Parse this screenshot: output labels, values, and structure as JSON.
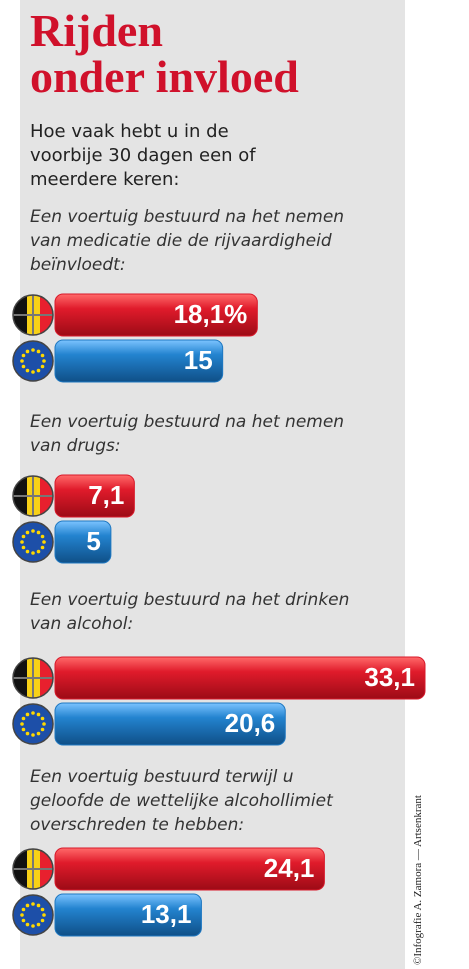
{
  "chart_data": {
    "type": "bar",
    "title_lines": [
      "Rijden",
      "onder invloed"
    ],
    "subtitle": "Hoe vaak hebt u in de voorbije 30 dagen een of meerdere keren:",
    "categories": [
      "Een voertuig bestuurd na het nemen van medicatie die de rijvaardigheid beïnvloedt:",
      "Een voertuig bestuurd na het nemen van drugs:",
      "Een voertuig bestuurd na het drinken van alcohol:",
      "Een voertuig bestuurd terwijl u geloofde de wettelijke alcohollimiet overschreden te hebben:"
    ],
    "series": [
      {
        "color": "#d8192a",
        "values": [
          18.1,
          7.1,
          33.1,
          24.1
        ],
        "value_labels": [
          "18,1%",
          "7,1",
          "33,1",
          "24,1"
        ]
      },
      {
        "color": "#1f78c1",
        "values": [
          15,
          5,
          20.6,
          13.1
        ],
        "value_labels": [
          "15",
          "5",
          "20,6",
          "13,1"
        ]
      }
    ],
    "credit": "©Infografie A. Zamora — Artsenkrant"
  }
}
